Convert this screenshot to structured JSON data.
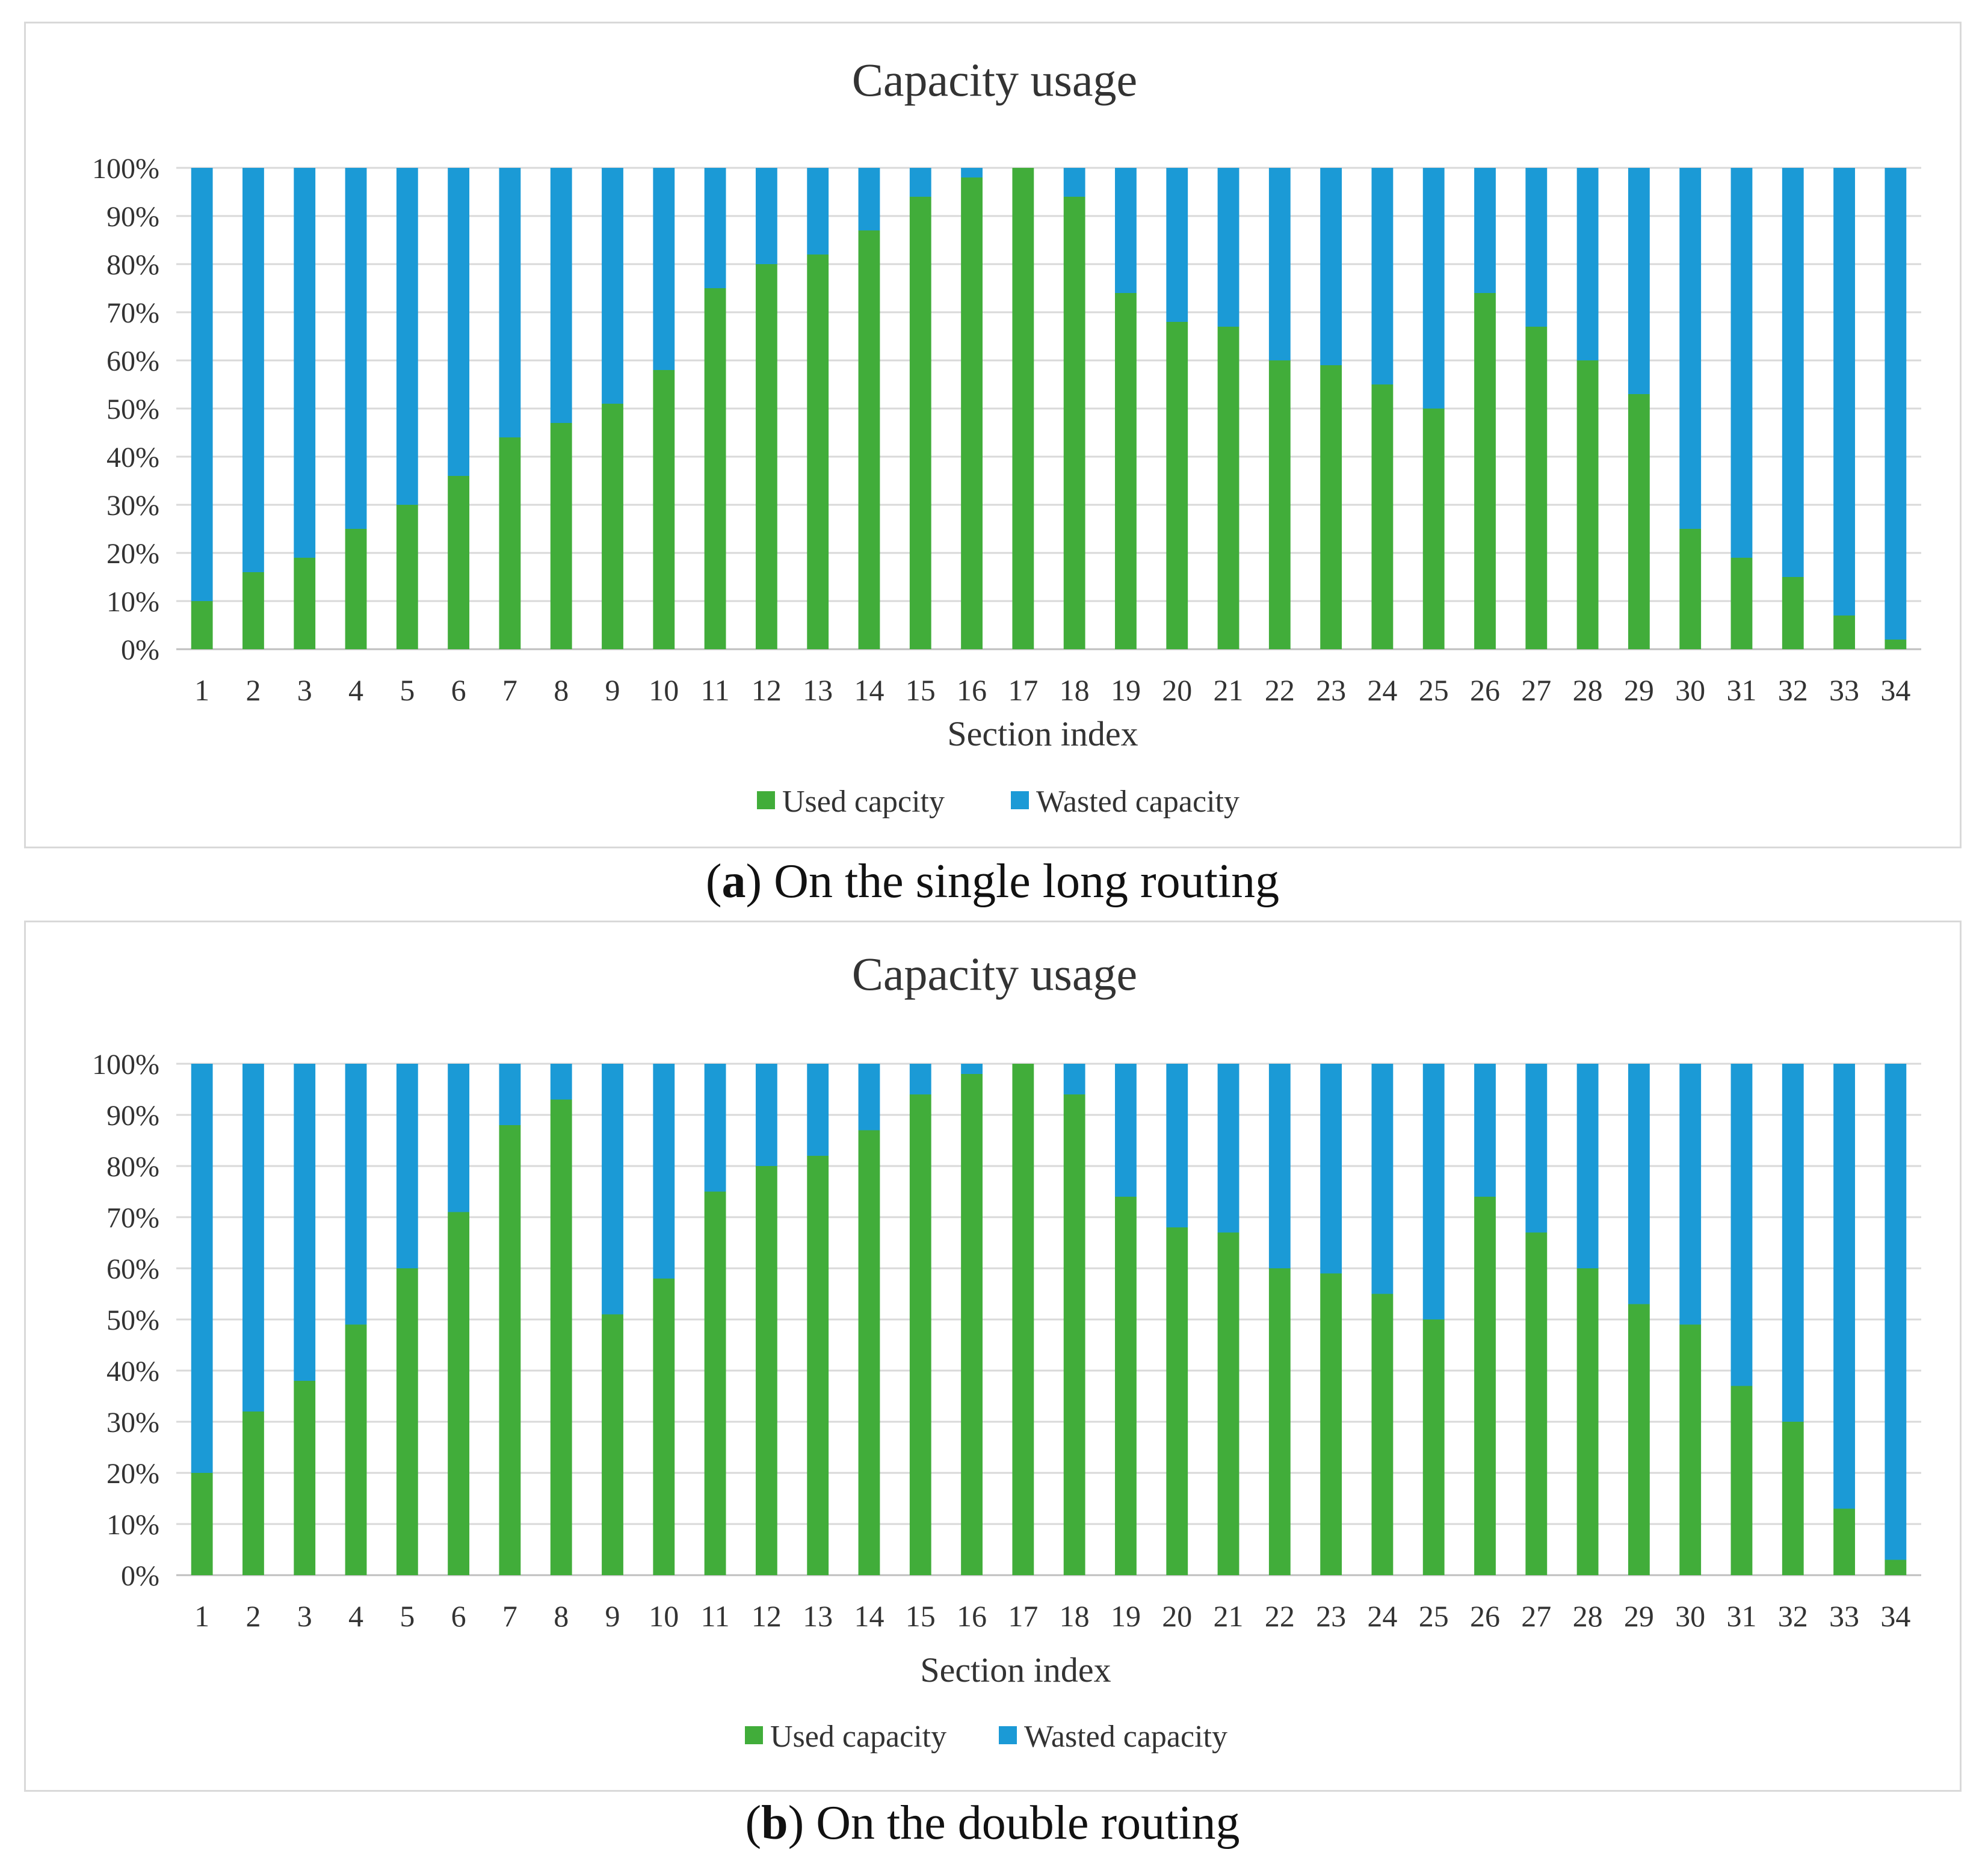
{
  "chart_data": [
    {
      "type": "bar",
      "stacked": true,
      "title": "Capacity  usage",
      "xlabel": "Section index",
      "ylabel": "",
      "ylim": [
        0,
        100
      ],
      "yticks": [
        "0%",
        "10%",
        "20%",
        "30%",
        "40%",
        "50%",
        "60%",
        "70%",
        "80%",
        "90%",
        "100%"
      ],
      "categories": [
        "1",
        "2",
        "3",
        "4",
        "5",
        "6",
        "7",
        "8",
        "9",
        "10",
        "11",
        "12",
        "13",
        "14",
        "15",
        "16",
        "17",
        "18",
        "19",
        "20",
        "21",
        "22",
        "23",
        "24",
        "25",
        "26",
        "27",
        "28",
        "29",
        "30",
        "31",
        "32",
        "33",
        "34"
      ],
      "series": [
        {
          "name": "Used capcity",
          "color": "#41AD3A",
          "values": [
            10,
            16,
            19,
            25,
            30,
            36,
            44,
            47,
            51,
            58,
            75,
            80,
            82,
            87,
            94,
            98,
            100,
            94,
            74,
            68,
            67,
            60,
            59,
            55,
            50,
            74,
            67,
            60,
            53,
            25,
            19,
            15,
            7,
            2
          ]
        },
        {
          "name": "Wasted capacity",
          "color": "#1B9AD6",
          "values": [
            90,
            84,
            81,
            75,
            70,
            64,
            56,
            53,
            49,
            42,
            25,
            20,
            18,
            13,
            6,
            2,
            0,
            6,
            26,
            32,
            33,
            40,
            41,
            45,
            50,
            26,
            33,
            40,
            47,
            75,
            81,
            85,
            93,
            98
          ]
        }
      ],
      "legend": "bottom-center",
      "caption_label": "a",
      "caption_text": " On the single long routing"
    },
    {
      "type": "bar",
      "stacked": true,
      "title": "Capacity  usage",
      "xlabel": "Section index",
      "ylabel": "",
      "ylim": [
        0,
        100
      ],
      "yticks": [
        "0%",
        "10%",
        "20%",
        "30%",
        "40%",
        "50%",
        "60%",
        "70%",
        "80%",
        "90%",
        "100%"
      ],
      "categories": [
        "1",
        "2",
        "3",
        "4",
        "5",
        "6",
        "7",
        "8",
        "9",
        "10",
        "11",
        "12",
        "13",
        "14",
        "15",
        "16",
        "17",
        "18",
        "19",
        "20",
        "21",
        "22",
        "23",
        "24",
        "25",
        "26",
        "27",
        "28",
        "29",
        "30",
        "31",
        "32",
        "33",
        "34"
      ],
      "series": [
        {
          "name": "Used capacity",
          "color": "#41AD3A",
          "values": [
            20,
            32,
            38,
            49,
            60,
            71,
            88,
            93,
            51,
            58,
            75,
            80,
            82,
            87,
            94,
            98,
            100,
            94,
            74,
            68,
            67,
            60,
            59,
            55,
            50,
            74,
            67,
            60,
            53,
            49,
            37,
            30,
            13,
            3
          ]
        },
        {
          "name": "Wasted capacity",
          "color": "#1B9AD6",
          "values": [
            80,
            68,
            62,
            51,
            40,
            29,
            12,
            7,
            49,
            42,
            25,
            20,
            18,
            13,
            6,
            2,
            0,
            6,
            26,
            32,
            33,
            40,
            41,
            45,
            50,
            26,
            33,
            40,
            47,
            51,
            63,
            70,
            87,
            97
          ]
        }
      ],
      "legend": "bottom-center",
      "caption_label": "b",
      "caption_text": " On the double routing"
    }
  ]
}
